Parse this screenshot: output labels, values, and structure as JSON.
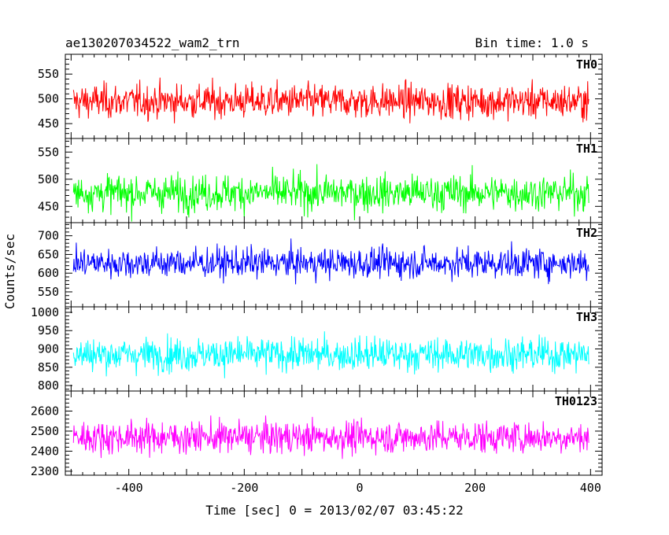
{
  "header": {
    "title": "ae130207034522_wam2_trn",
    "bin_time": "Bin time: 1.0 s"
  },
  "chart_data": {
    "type": "line",
    "xlabel": "Time [sec] 0 = 2013/02/07 03:45:22",
    "ylabel": "Counts/sec",
    "xlim": [
      -510,
      420
    ],
    "x_ticks": [
      -400,
      -200,
      0,
      200,
      400
    ],
    "x_start": -496,
    "x_end": 397,
    "bin_time_s": 1.0,
    "panels": [
      {
        "name": "TH0",
        "color": "#ff0000",
        "ylim": [
          420,
          590
        ],
        "y_ticks": [
          450,
          500,
          550
        ],
        "mean": 495,
        "spread": 28
      },
      {
        "name": "TH1",
        "color": "#00ff00",
        "ylim": [
          420,
          575
        ],
        "y_ticks": [
          450,
          500,
          550
        ],
        "mean": 475,
        "spread": 27
      },
      {
        "name": "TH2",
        "color": "#0000ff",
        "ylim": [
          510,
          735
        ],
        "y_ticks": [
          550,
          600,
          650,
          700
        ],
        "mean": 627,
        "spread": 33
      },
      {
        "name": "TH3",
        "color": "#00ffff",
        "ylim": [
          785,
          1015
        ],
        "y_ticks": [
          800,
          850,
          900,
          950,
          1000
        ],
        "mean": 885,
        "spread": 37
      },
      {
        "name": "TH0123",
        "color": "#ff00ff",
        "ylim": [
          2280,
          2700
        ],
        "y_ticks": [
          2300,
          2400,
          2500,
          2600
        ],
        "mean": 2470,
        "spread": 65
      }
    ]
  }
}
